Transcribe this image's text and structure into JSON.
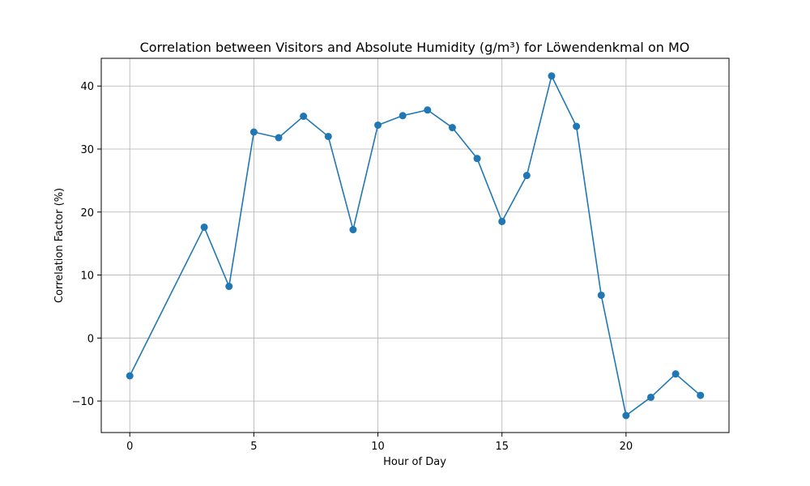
{
  "chart_data": {
    "type": "line",
    "title": "Correlation between Visitors and Absolute Humidity (g/m³) for Löwendenkmal on MO",
    "xlabel": "Hour of Day",
    "ylabel": "Correlation Factor (%)",
    "xlim": [
      -1.15,
      24.15
    ],
    "ylim": [
      -15,
      44.4
    ],
    "xticks": [
      0,
      5,
      10,
      15,
      20
    ],
    "yticks": [
      -10,
      0,
      10,
      20,
      30,
      40
    ],
    "xtick_labels": [
      "0",
      "5",
      "10",
      "15",
      "20"
    ],
    "ytick_labels": [
      "−10",
      "0",
      "10",
      "20",
      "30",
      "40"
    ],
    "grid": true,
    "series": [
      {
        "color": "#1f77b4",
        "marker": "circle",
        "x": [
          0,
          3,
          4,
          5,
          6,
          7,
          8,
          9,
          10,
          11,
          12,
          13,
          14,
          15,
          16,
          17,
          18,
          19,
          20,
          21,
          22,
          23
        ],
        "y": [
          -6.0,
          17.6,
          8.2,
          32.7,
          31.8,
          35.2,
          32.0,
          17.2,
          33.8,
          35.3,
          36.2,
          33.4,
          28.5,
          18.5,
          25.8,
          41.6,
          33.6,
          6.8,
          -12.3,
          -9.4,
          -5.7,
          -9.1
        ]
      }
    ]
  }
}
